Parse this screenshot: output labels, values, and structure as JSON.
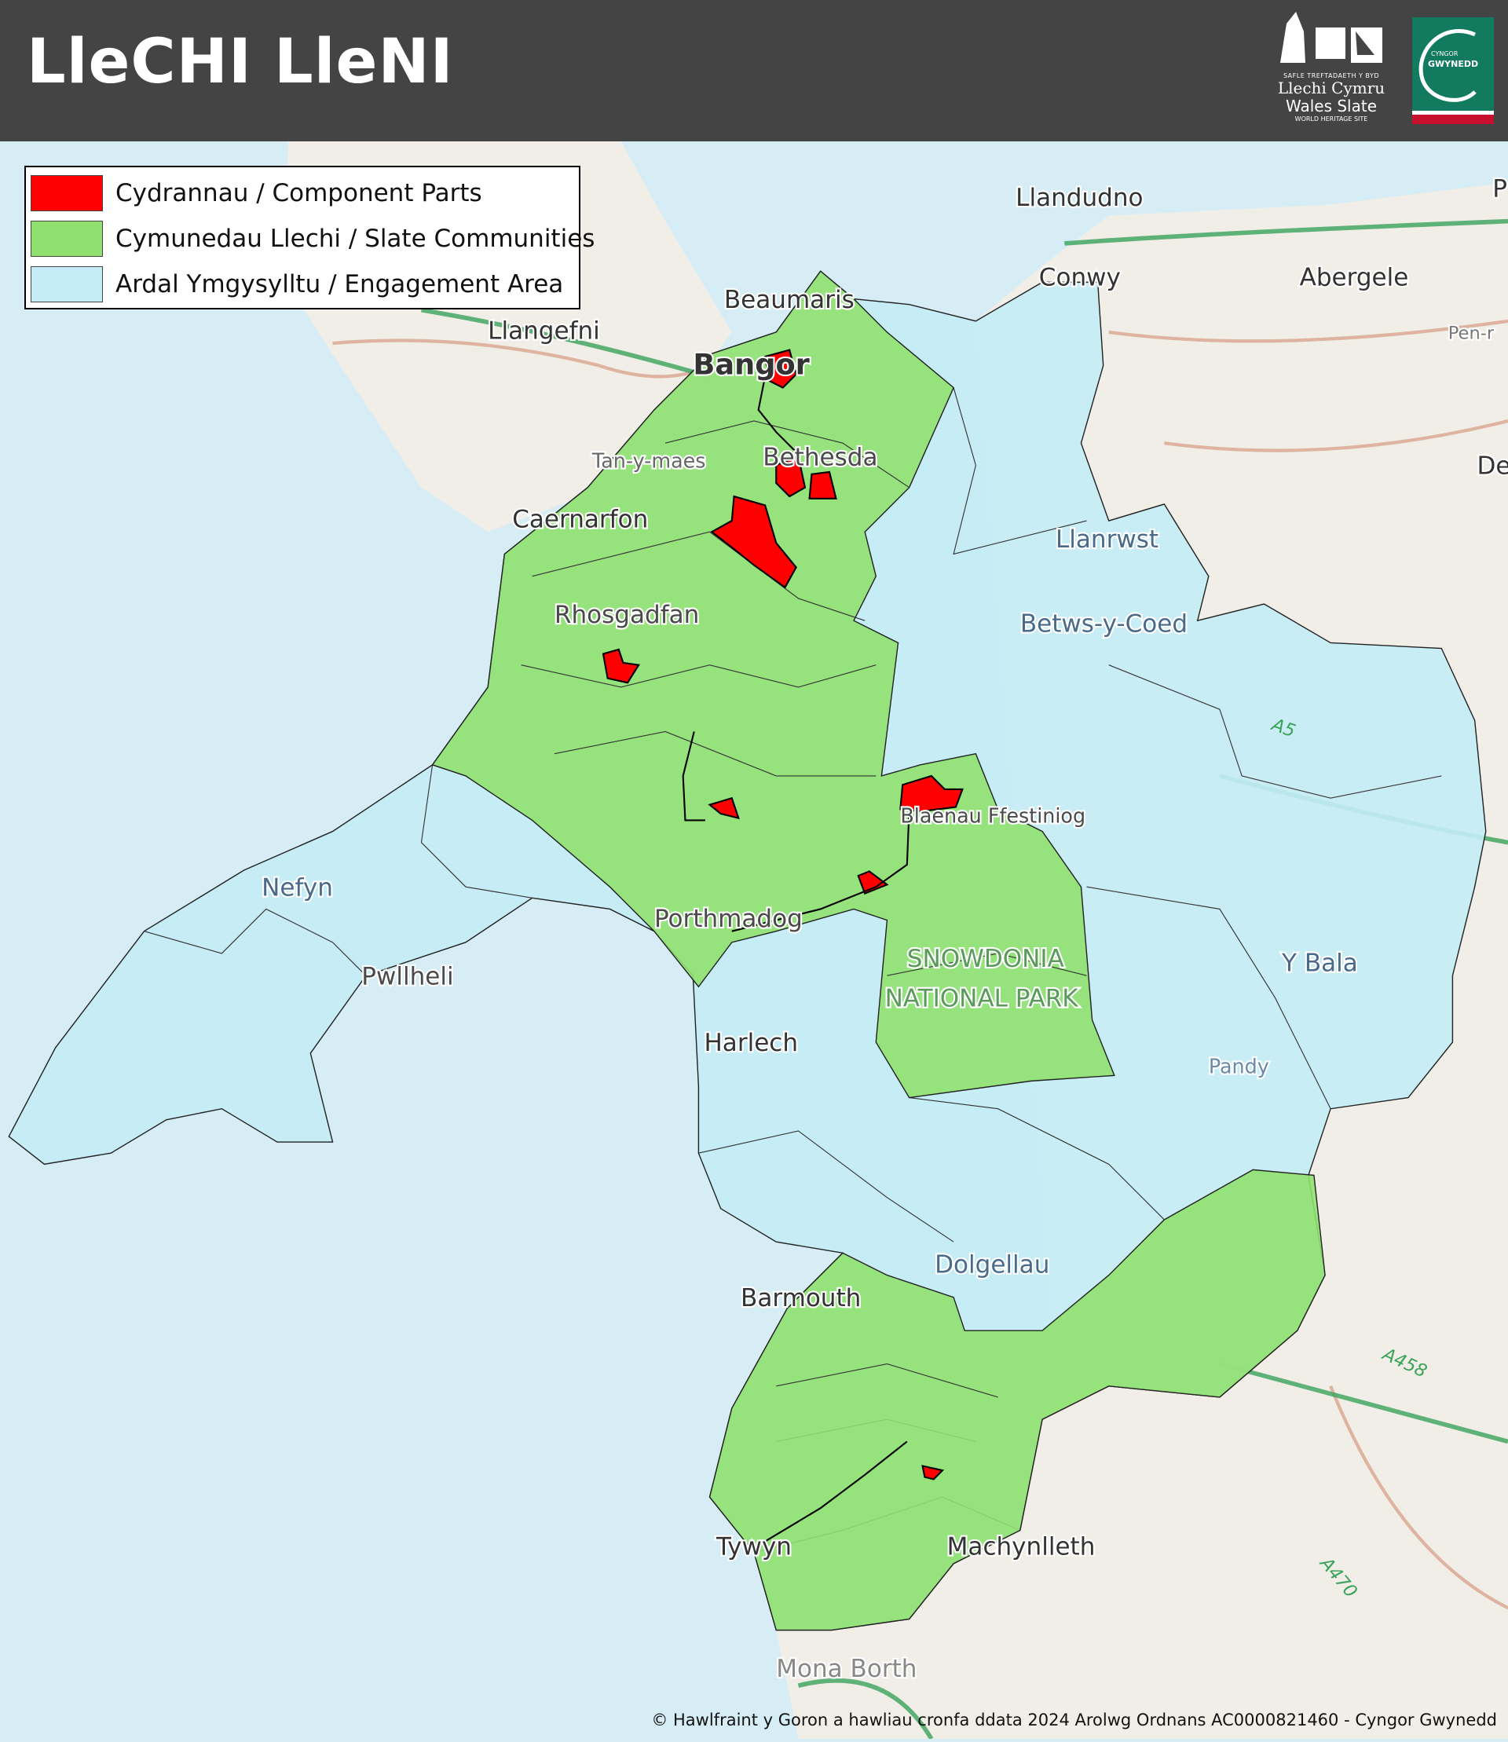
{
  "header": {
    "title": "LleCHI LleNI",
    "background": "#444444",
    "whs_logo": {
      "line1": "SAFLE TREFTADAETH Y BYD",
      "line2": "Llechi Cymru",
      "line3": "Wales Slate",
      "line4": "WORLD HERITAGE SITE"
    },
    "council_logo": {
      "line1": "CYNGOR",
      "line2": "GWYNEDD"
    }
  },
  "legend": {
    "items": [
      {
        "label": "Cydrannau / Component Parts",
        "color": "#ff0000"
      },
      {
        "label": "Cymunedau Llechi / Slate Communities",
        "color": "#90e070"
      },
      {
        "label": "Ardal Ymgysylltu / Engagement Area",
        "color": "#c4ecf6"
      }
    ]
  },
  "map": {
    "places": [
      "Llandudno",
      "Conwy",
      "Abergele",
      "Beaumaris",
      "Llangefni",
      "Bangor",
      "Bethesda",
      "Tan-y-maes",
      "Caernarfon",
      "Llanrwst",
      "Betws-y-Coed",
      "Rhosgadfan",
      "Blaenau Ffestiniog",
      "Nefyn",
      "Porthmadog",
      "Pwllheli",
      "SNOWDONIA",
      "NATIONAL PARK",
      "Harlech",
      "Y Bala",
      "Pandy",
      "Dolgellau",
      "Barmouth",
      "Tywyn",
      "Machynlleth",
      "Mona Borth",
      "Pen-r",
      "De",
      "P"
    ],
    "roads": [
      "A5",
      "A458",
      "A470"
    ]
  },
  "copyright": "© Hawlfraint y Goron a hawliau cronfa ddata 2024 Arolwg Ordnans AC0000821460 - Cyngor Gwynedd"
}
